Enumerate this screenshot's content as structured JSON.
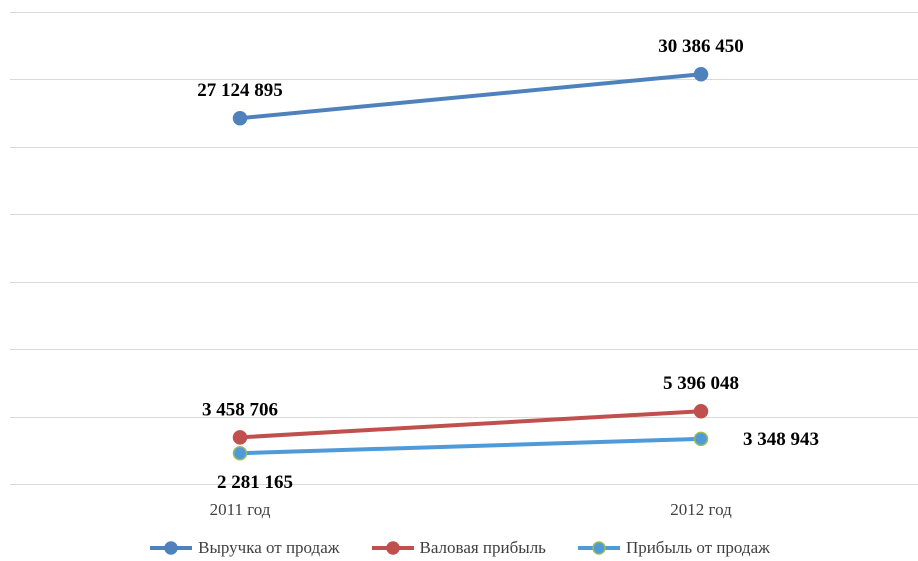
{
  "chart_data": {
    "type": "line",
    "categories": [
      "2011 год",
      "2012 год"
    ],
    "series": [
      {
        "name": "Выручка от продаж",
        "values": [
          27124895,
          30386450
        ],
        "labels": [
          "27 124 895",
          "30 386 450"
        ],
        "color": "#4f81bd",
        "marker_fill": "#4f81bd",
        "marker_stroke": "#4f81bd"
      },
      {
        "name": "Валовая прибыль",
        "values": [
          3458706,
          5396048
        ],
        "labels": [
          "3 458 706",
          "5 396 048"
        ],
        "color": "#c0504d",
        "marker_fill": "#c0504d",
        "marker_stroke": "#c0504d"
      },
      {
        "name": "Прибыль от продаж",
        "values": [
          2281165,
          3348943
        ],
        "labels": [
          "2 281 165",
          "3 348 943"
        ],
        "color": "#4f9ad8",
        "marker_fill": "#4f9ad8",
        "marker_stroke": "#9bbb59"
      }
    ],
    "ylim": [
      0,
      35000000
    ],
    "yticks": [
      0,
      5000000,
      10000000,
      15000000,
      20000000,
      25000000,
      30000000,
      35000000
    ],
    "grid": true,
    "legend_position": "bottom"
  }
}
